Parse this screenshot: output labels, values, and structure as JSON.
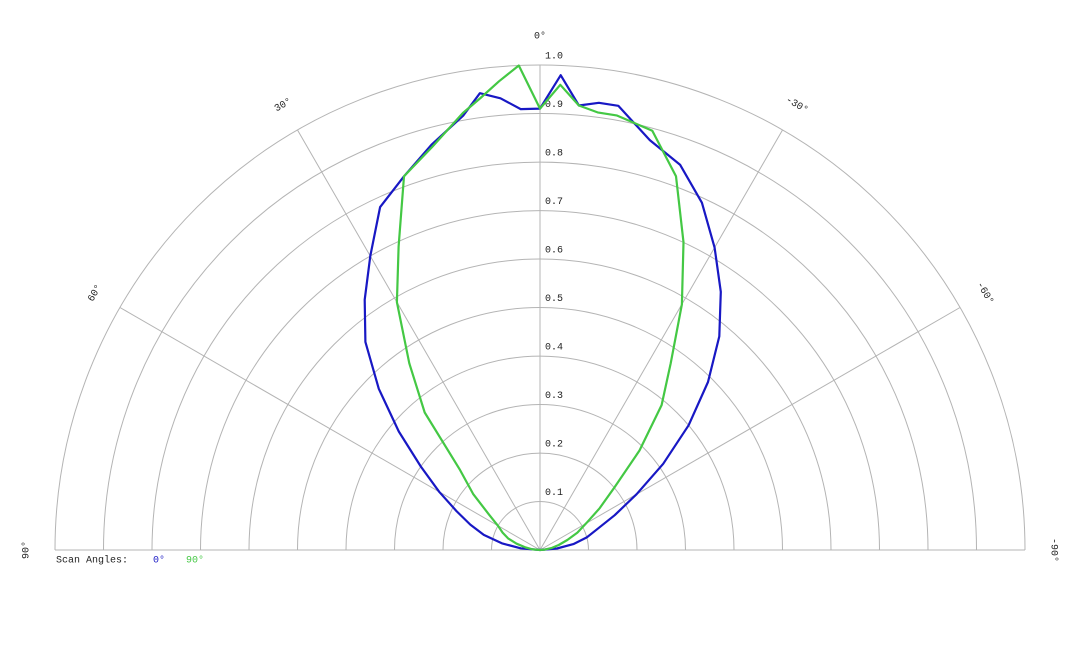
{
  "chart_data": {
    "type": "polar",
    "x": [
      90,
      85,
      80,
      75,
      70,
      65,
      60,
      55,
      50,
      45,
      40,
      35,
      30,
      25,
      20,
      15,
      10,
      7.5,
      5,
      2.5,
      0,
      -2.5,
      -5,
      -7.5,
      -10,
      -15,
      -20,
      -25,
      -30,
      -35,
      -40,
      -45,
      -50,
      -55,
      -60,
      -65,
      -70,
      -75,
      -80,
      -85,
      -90
    ],
    "series": [
      {
        "name": "0°",
        "color": "#1818c4",
        "values": [
          0,
          0.04,
          0.08,
          0.12,
          0.153,
          0.19,
          0.24,
          0.3,
          0.38,
          0.47,
          0.56,
          0.63,
          0.7,
          0.78,
          0.82,
          0.865,
          0.91,
          0.95,
          0.935,
          0.91,
          0.91,
          0.98,
          0.92,
          0.93,
          0.93,
          0.875,
          0.845,
          0.79,
          0.72,
          0.65,
          0.575,
          0.49,
          0.4,
          0.31,
          0.23,
          0.17,
          0.125,
          0.1,
          0.07,
          0.035,
          0
        ]
      },
      {
        "name": "90°",
        "color": "#44c844",
        "values": [
          0,
          0.015,
          0.03,
          0.05,
          0.07,
          0.085,
          0.1,
          0.13,
          0.18,
          0.233,
          0.37,
          0.47,
          0.59,
          0.69,
          0.82,
          0.86,
          0.915,
          0.94,
          0.97,
          1.0,
          0.91,
          0.96,
          0.92,
          0.91,
          0.91,
          0.895,
          0.82,
          0.7,
          0.585,
          0.47,
          0.39,
          0.29,
          0.2,
          0.15,
          0.11,
          0.085,
          0.06,
          0.04,
          0.025,
          0.01,
          0
        ]
      }
    ],
    "rlim": [
      0,
      1
    ],
    "rticks": [
      0.1,
      0.2,
      0.3,
      0.4,
      0.5,
      0.6,
      0.7,
      0.8,
      0.9,
      {
        "value": 1,
        "label": "1.0"
      }
    ],
    "xlim": [
      90,
      -90
    ],
    "xticks": [
      {
        "value": 90,
        "label": "90°"
      },
      {
        "value": 60,
        "label": "60°"
      },
      {
        "value": 30,
        "label": "30°"
      },
      {
        "value": 0,
        "label": "0°"
      },
      {
        "value": -30,
        "label": "-30°"
      },
      {
        "value": -60,
        "label": "-60°"
      },
      {
        "value": -90,
        "label": "-90°"
      }
    ],
    "legend_title": "Scan Angles:",
    "grid": true
  }
}
